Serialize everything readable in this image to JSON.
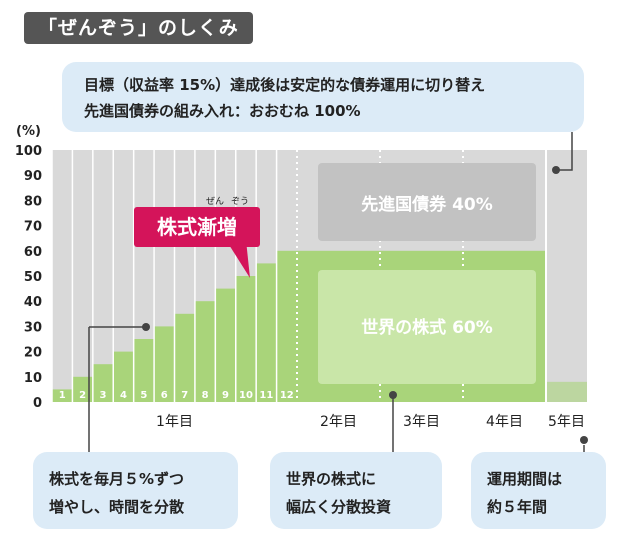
{
  "title_tag": "「ぜんぞう」のしくみ",
  "target_note": {
    "line1": "目標（収益率 15%）達成後は安定的な債券運用に切り替え",
    "line2": "先進国債券の組み入れ：おおむね 100%"
  },
  "callout_left": {
    "line1": "株式を毎月５%ずつ",
    "line2": "増やし、時間を分散"
  },
  "callout_mid": {
    "line1": "世界の株式に",
    "line2": "幅広く分散投資"
  },
  "callout_right": {
    "line1": "運用期間は",
    "line2": "約５年間"
  },
  "badge": {
    "label": "株式漸増",
    "ruby1": "ぜん",
    "ruby2": "ぞう"
  },
  "colors": {
    "stock_green": "#a9d47a",
    "stock_box": "#c9e6a8",
    "bond_gray": "#d9d9d9",
    "bond_box": "#c2c2c2",
    "badge_red": "#d4145a",
    "bubble_blue": "#dcebf7"
  },
  "chart_data": {
    "type": "bar",
    "ylabel": "(%)",
    "ylim": [
      0,
      100
    ],
    "yticks": [
      0,
      10,
      20,
      30,
      40,
      50,
      60,
      70,
      80,
      90,
      100
    ],
    "month_labels": [
      "1",
      "2",
      "3",
      "4",
      "5",
      "6",
      "7",
      "8",
      "9",
      "10",
      "11",
      "12"
    ],
    "stock_values": [
      5,
      10,
      15,
      20,
      25,
      30,
      35,
      40,
      45,
      50,
      55,
      60
    ],
    "year_labels": [
      "1年目",
      "2年目",
      "3年目",
      "4年目",
      "5年目"
    ],
    "allocation_box_bonds": "先進国債券 40%",
    "allocation_box_stocks": "世界の株式 60%"
  }
}
